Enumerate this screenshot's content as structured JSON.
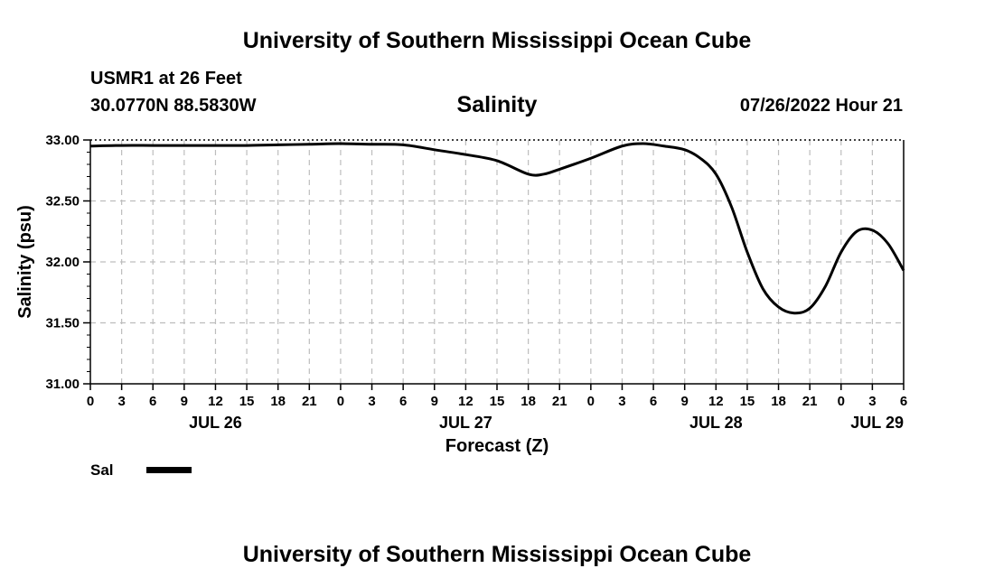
{
  "header": {
    "title": "University of Southern Mississippi Ocean Cube",
    "station": "USMR1 at 26 Feet",
    "coords": "30.0770N  88.5830W",
    "date": "07/26/2022 Hour 21"
  },
  "footer": {
    "title": "University of Southern Mississippi Ocean Cube"
  },
  "legend": {
    "label": "Sal"
  },
  "colors": {
    "line": "#000000",
    "grid": "#bdbdbd",
    "axis": "#000000"
  },
  "chart_data": {
    "type": "line",
    "title": "Salinity",
    "xlabel": "Forecast (Z)",
    "ylabel": "Salinity (psu)",
    "ylim": [
      31.0,
      33.0
    ],
    "xlim": [
      0,
      78
    ],
    "x_unit": "hours since JUL 26 00Z",
    "y_ticks": [
      "31.00",
      "31.50",
      "32.00",
      "32.50",
      "33.00"
    ],
    "x_tick_labels": [
      "0",
      "3",
      "6",
      "9",
      "12",
      "15",
      "18",
      "21",
      "0",
      "3",
      "6",
      "9",
      "12",
      "15",
      "18",
      "21",
      "0",
      "3",
      "6",
      "9",
      "12",
      "15",
      "18",
      "21",
      "0",
      "3",
      "6"
    ],
    "date_labels": [
      {
        "label": "JUL 26",
        "hour": 12
      },
      {
        "label": "JUL 27",
        "hour": 36
      },
      {
        "label": "JUL 28",
        "hour": 60
      },
      {
        "label": "JUL 29",
        "hour": 78
      }
    ],
    "grid": true,
    "series": [
      {
        "name": "Sal",
        "x": [
          0,
          3,
          6,
          9,
          12,
          15,
          18,
          21,
          24,
          27,
          30,
          33,
          36,
          39,
          42,
          43.5,
          45,
          48,
          51,
          53,
          55,
          57,
          58.5,
          60,
          61.5,
          63,
          64.5,
          66,
          67.5,
          69,
          70.5,
          72,
          73.5,
          75,
          76.5,
          78
        ],
        "values": [
          32.95,
          32.955,
          32.955,
          32.955,
          32.955,
          32.955,
          32.96,
          32.965,
          32.97,
          32.965,
          32.96,
          32.92,
          32.88,
          32.83,
          32.72,
          32.72,
          32.76,
          32.85,
          32.95,
          32.97,
          32.95,
          32.92,
          32.85,
          32.72,
          32.45,
          32.08,
          31.78,
          31.63,
          31.58,
          31.62,
          31.8,
          32.08,
          32.25,
          32.26,
          32.15,
          31.93
        ]
      }
    ]
  }
}
